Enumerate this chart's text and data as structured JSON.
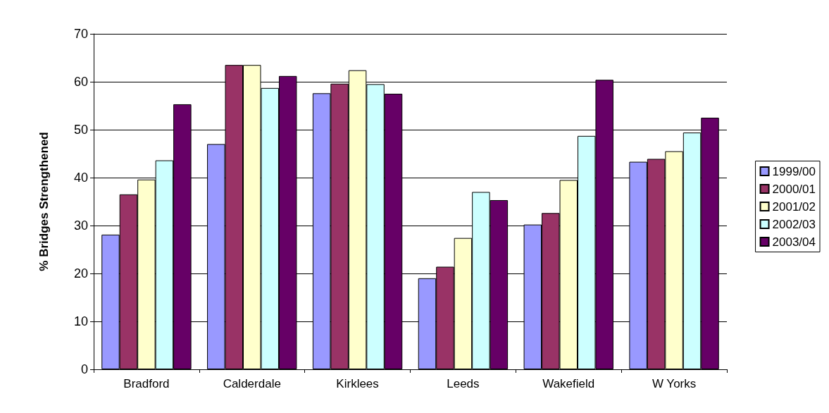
{
  "chart_data": {
    "type": "bar",
    "ylabel": "% Bridges Strengthened",
    "categories": [
      "Bradford",
      "Calderdale",
      "Kirklees",
      "Leeds",
      "Wakefield",
      "W Yorks"
    ],
    "series": [
      {
        "name": "1999/00",
        "color": "#9999ff",
        "values": [
          28.1,
          47,
          57.6,
          19,
          30.2,
          43.3
        ]
      },
      {
        "name": "2000/01",
        "color": "#993366",
        "values": [
          36.5,
          63.5,
          59.6,
          21.4,
          32.6,
          43.9
        ]
      },
      {
        "name": "2001/02",
        "color": "#ffffcc",
        "values": [
          39.6,
          63.5,
          62.4,
          27.4,
          39.5,
          45.5
        ]
      },
      {
        "name": "2002/03",
        "color": "#ccffff",
        "values": [
          43.6,
          58.7,
          59.5,
          37,
          48.7,
          49.4
        ]
      },
      {
        "name": "2003/04",
        "color": "#660066",
        "values": [
          55.3,
          61.2,
          57.5,
          35.3,
          60.4,
          52.5
        ]
      }
    ],
    "ylim": [
      0,
      70
    ],
    "yticks": [
      0,
      10,
      20,
      30,
      40,
      50,
      60,
      70
    ],
    "grid": "y",
    "legend": "right"
  }
}
